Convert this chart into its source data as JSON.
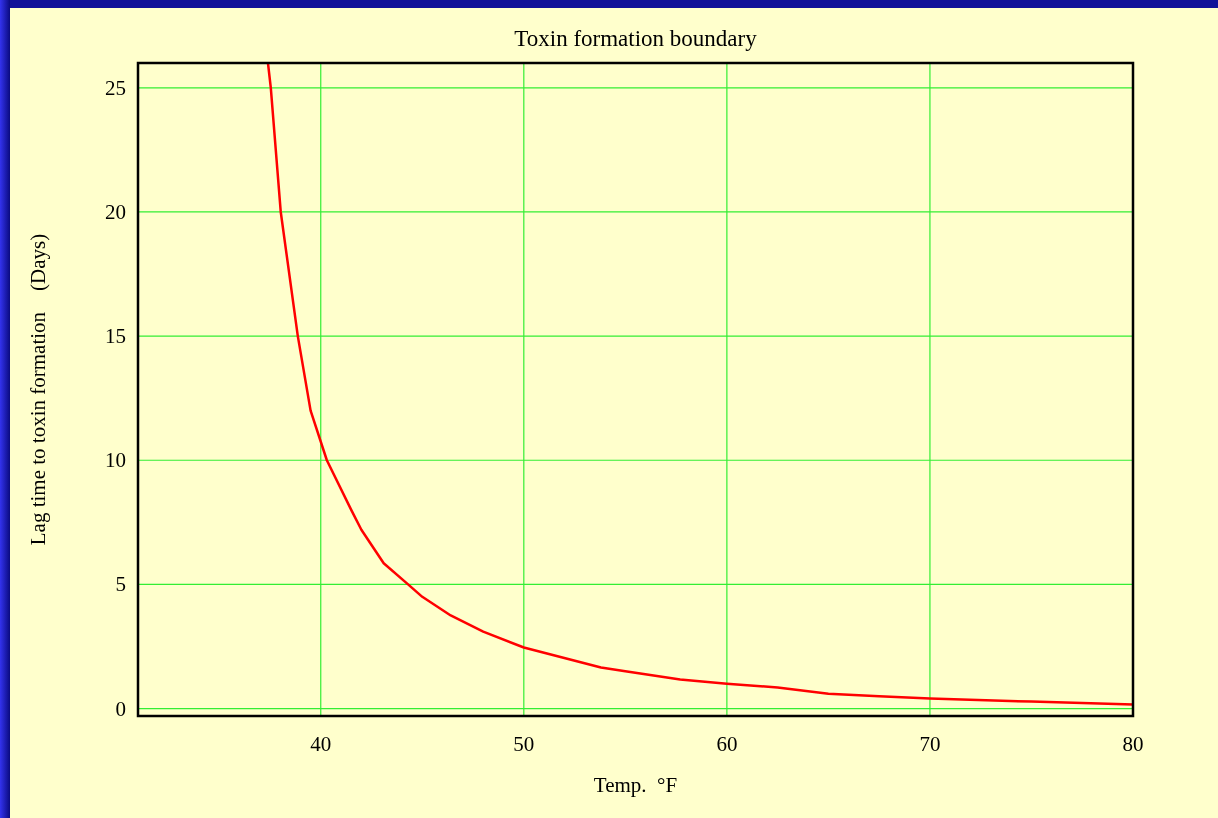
{
  "chart_data": {
    "type": "line",
    "title": "Toxin formation boundary",
    "xlabel": "Temp.  °F",
    "ylabel": "Lag time to toxin formation    (Days)",
    "x": [
      37.4,
      37.54,
      38.03,
      38.87,
      39.5,
      40.3,
      41.5,
      42,
      43.1,
      44.3,
      45,
      46.4,
      48,
      50,
      53.8,
      55,
      57.7,
      60,
      62.5,
      65,
      67.5,
      70,
      75,
      80
    ],
    "series": [
      {
        "color": "#ff0000",
        "values": [
          26,
          25,
          20,
          15,
          12,
          10,
          8,
          7.2,
          5.85,
          5,
          4.5,
          3.75,
          3.1,
          2.46,
          1.65,
          1.5,
          1.17,
          1.0,
          0.85,
          0.6,
          0.5,
          0.4,
          0.28,
          0.16
        ]
      }
    ],
    "xlim": [
      31,
      80
    ],
    "xticks": [
      40,
      50,
      60,
      70,
      80
    ],
    "ylim": [
      -0.3,
      26
    ],
    "yticks": [
      0,
      5,
      10,
      15,
      20,
      25
    ],
    "grid": true
  }
}
